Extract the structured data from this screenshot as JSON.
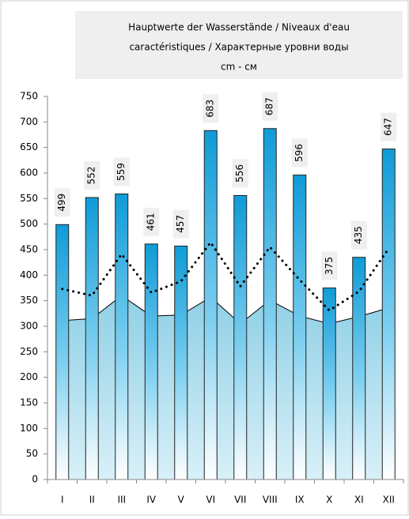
{
  "chart_data": {
    "type": "bar",
    "title": [
      "Hauptwerte der Wasserstände / Niveaux d'eau",
      "caractéristiques / Характерные уровни воды",
      "cm - см"
    ],
    "categories": [
      "I",
      "II",
      "III",
      "IV",
      "V",
      "VI",
      "VII",
      "VIII",
      "IX",
      "X",
      "XI",
      "XII"
    ],
    "ylim": [
      0,
      750
    ],
    "yticks": [
      0,
      50,
      100,
      150,
      200,
      250,
      300,
      350,
      400,
      450,
      500,
      550,
      600,
      650,
      700,
      750
    ],
    "series": [
      {
        "type": "area",
        "color": "#a9dbeb",
        "values": [
          311,
          315,
          360,
          320,
          322,
          357,
          305,
          351,
          320,
          305,
          319,
          336
        ]
      },
      {
        "type": "bar",
        "color": "#16a0da",
        "values": [
          499,
          552,
          559,
          461,
          457,
          683,
          556,
          687,
          596,
          375,
          435,
          647
        ]
      },
      {
        "type": "dotted",
        "color": "#000000",
        "values": [
          373,
          360,
          441,
          366,
          388,
          464,
          378,
          455,
          391,
          331,
          368,
          452
        ]
      }
    ]
  }
}
